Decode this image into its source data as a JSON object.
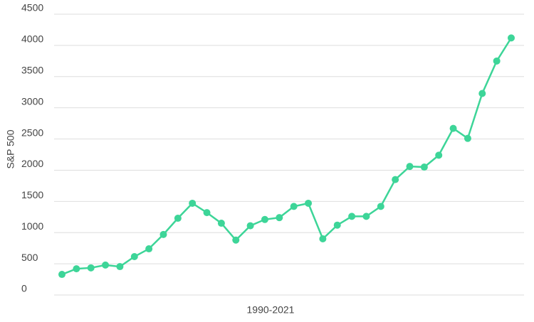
{
  "chart_data": {
    "type": "line",
    "x_label": "1990-2021",
    "y_label": "S&P 500",
    "values": [
      330,
      420,
      435,
      480,
      455,
      615,
      740,
      970,
      1230,
      1470,
      1320,
      1150,
      880,
      1110,
      1210,
      1240,
      1420,
      1470,
      900,
      1120,
      1260,
      1260,
      1420,
      1850,
      2060,
      2050,
      2240,
      2670,
      2510,
      3230,
      3750,
      4120
    ],
    "color": "#3dd598",
    "ylim": [
      0,
      4500
    ],
    "yticks": [
      0,
      500,
      1000,
      1500,
      2000,
      2500,
      3000,
      3500,
      4000,
      4500
    ],
    "grid": true
  }
}
